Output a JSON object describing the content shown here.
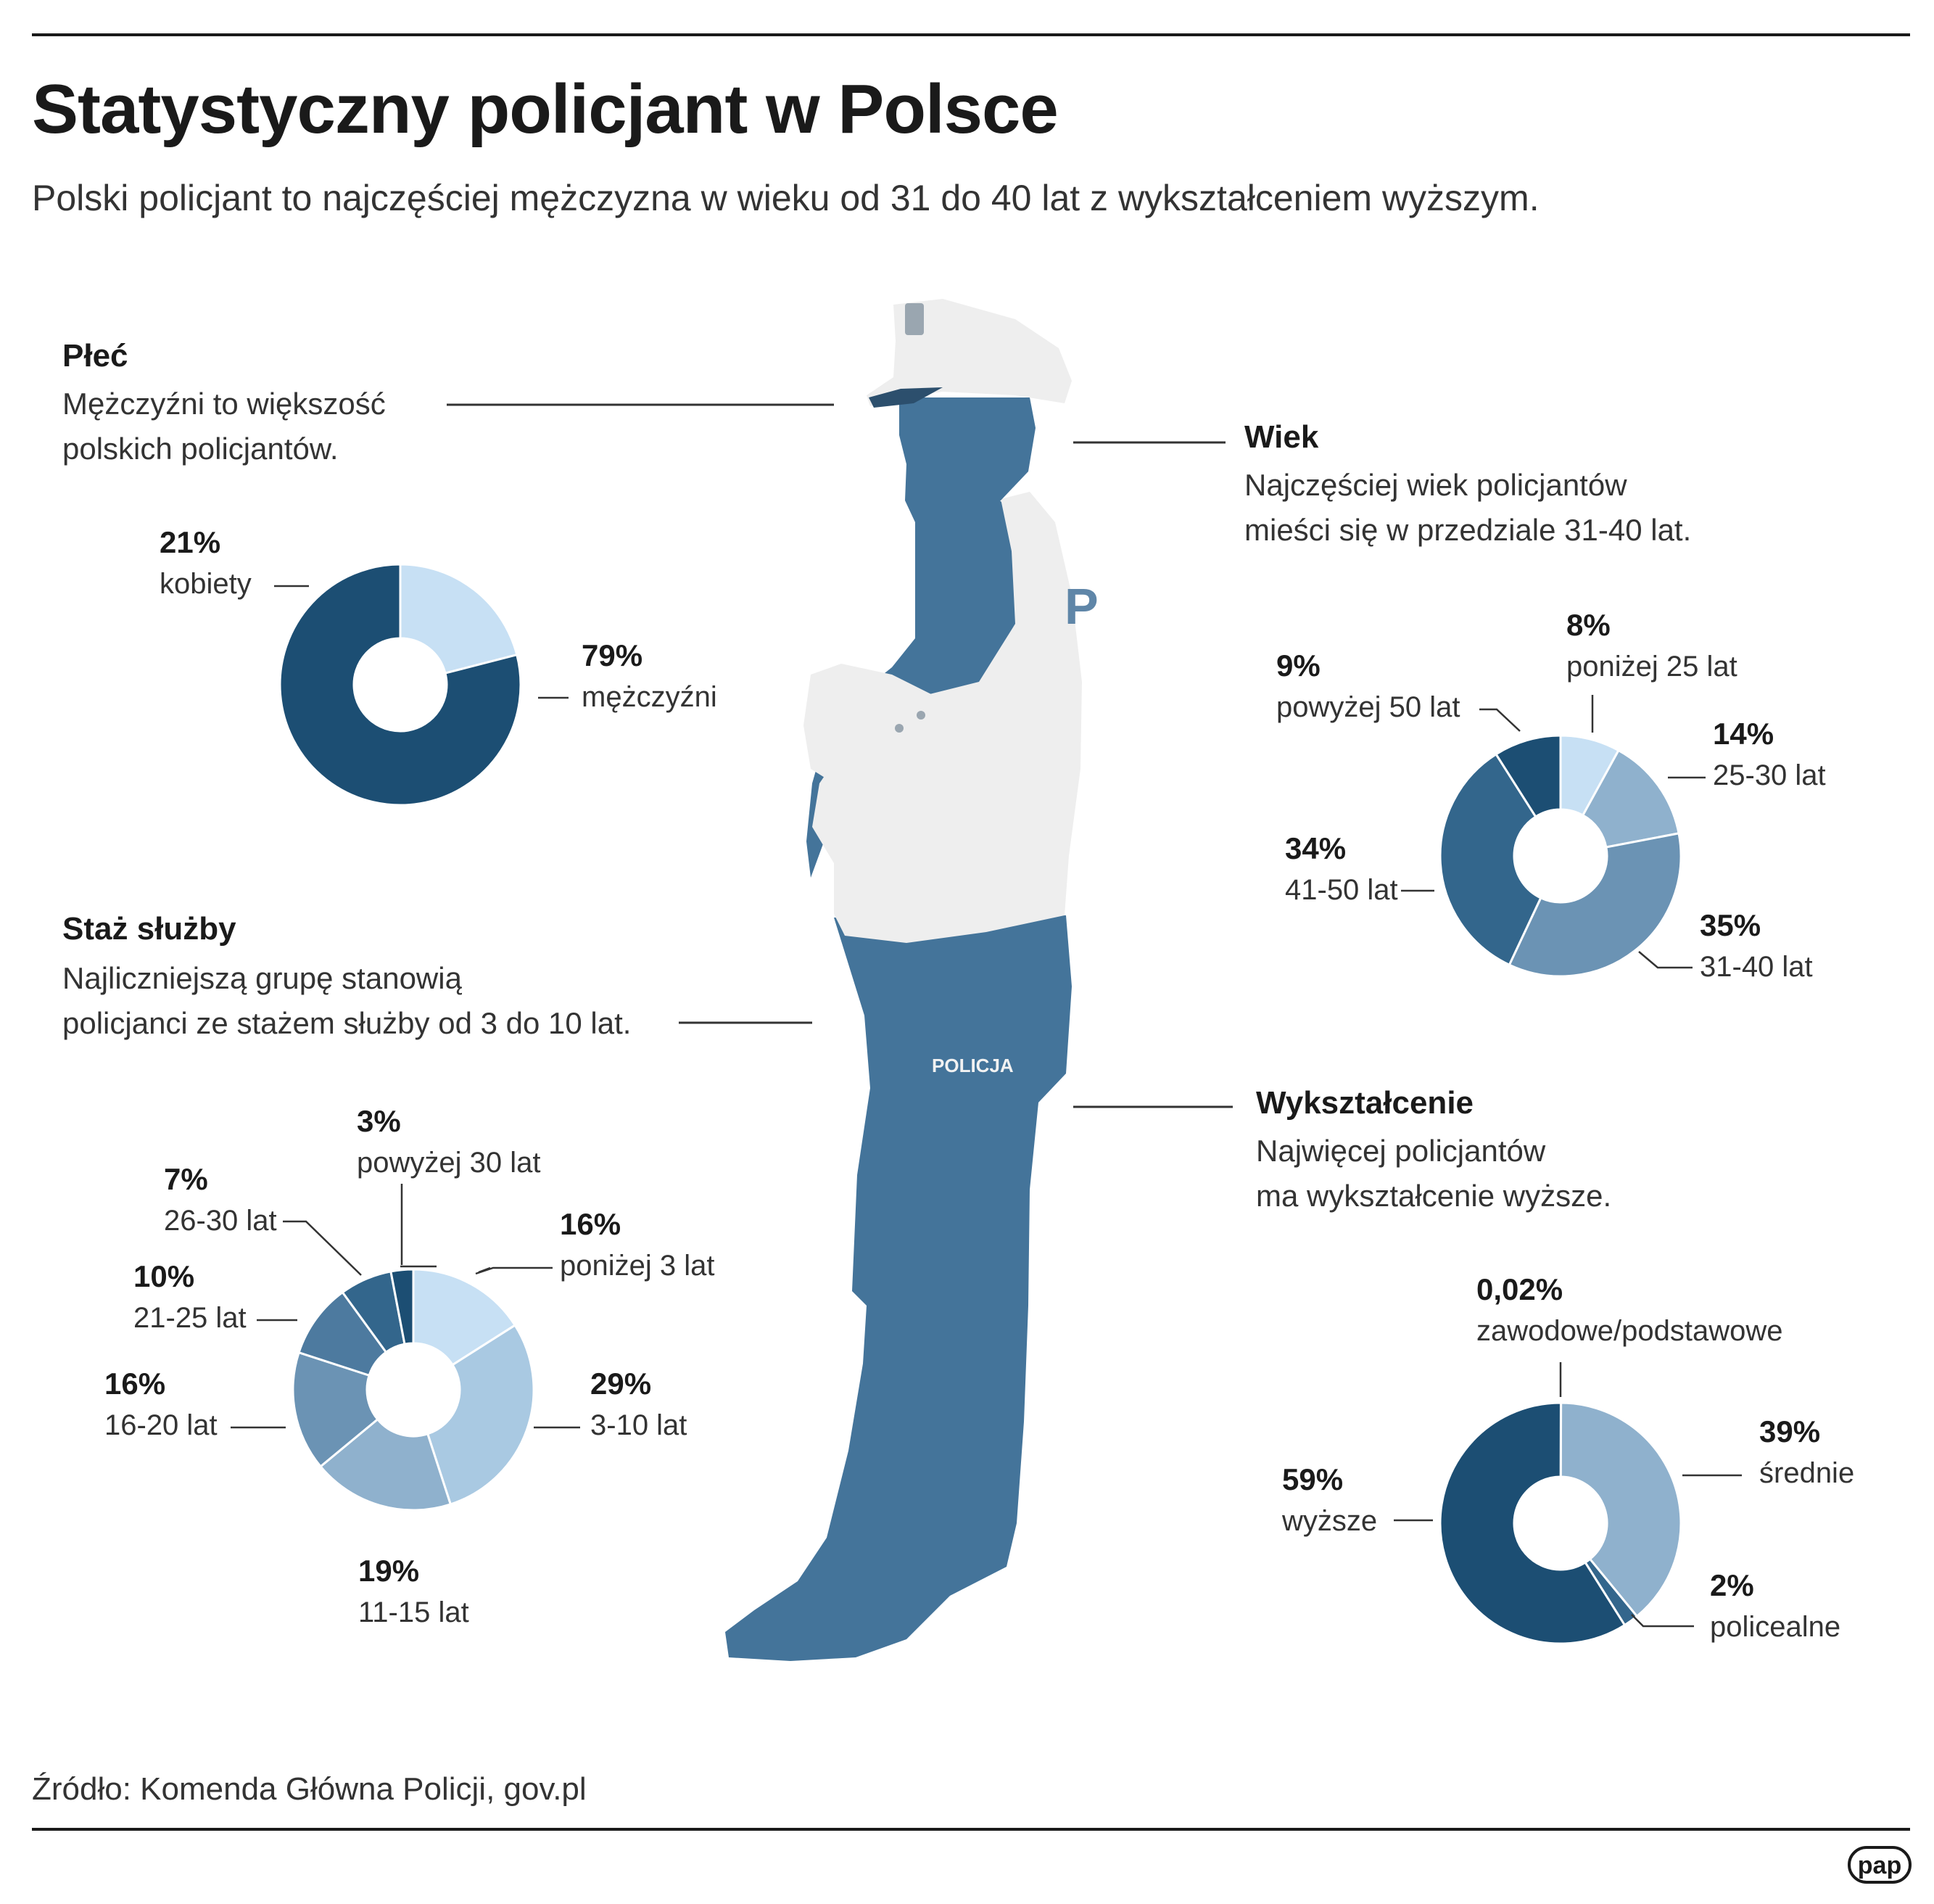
{
  "title": "Statystyczny policjant w Polsce",
  "subtitle": "Polski policjant to najczęściej mężczyzna w wieku od 31 do 40 lat z wykształceniem wyższym.",
  "source": "Źródło: Komenda Główna Policji, gov.pl",
  "logo": "pap",
  "figure": {
    "badge_text": "POLICJA",
    "vest_text": "P"
  },
  "sections": {
    "gender": {
      "heading": "Płeć",
      "description": [
        "Mężczyźni to większość",
        "polskich policjantów."
      ]
    },
    "age": {
      "heading": "Wiek",
      "description": [
        "Najczęściej wiek policjantów",
        "mieści się w przedziale 31-40 lat."
      ]
    },
    "service": {
      "heading": "Staż służby",
      "description": [
        "Najliczniejszą grupę stanowią",
        "policjanci ze stażem służby od 3 do 10 lat."
      ]
    },
    "education": {
      "heading": "Wykształcenie",
      "description": [
        "Najwięcej policjantów",
        "ma wykształcenie wyższe."
      ]
    }
  },
  "colors": {
    "navy": "#1c4e73",
    "mid_dark": "#33668c",
    "mid": "#6b93b4",
    "mid_light": "#8fb1cd",
    "light": "#a9c9e2",
    "pale": "#c7e0f4",
    "figure": "#44749a",
    "figure_white": "#eeeeee"
  },
  "chart_data": [
    {
      "id": "gender",
      "type": "pie",
      "donut": true,
      "slices": [
        {
          "value": 21,
          "pct": "21%",
          "label": "kobiety",
          "color": "#c7e0f4"
        },
        {
          "value": 79,
          "pct": "79%",
          "label": "mężczyźni",
          "color": "#1c4e73"
        }
      ]
    },
    {
      "id": "age",
      "type": "pie",
      "donut": true,
      "slices": [
        {
          "value": 8,
          "pct": "8%",
          "label": "poniżej 25 lat",
          "color": "#c7e0f4"
        },
        {
          "value": 14,
          "pct": "14%",
          "label": "25-30 lat",
          "color": "#8fb1cd"
        },
        {
          "value": 35,
          "pct": "35%",
          "label": "31-40 lat",
          "color": "#6b93b4"
        },
        {
          "value": 34,
          "pct": "34%",
          "label": "41-50 lat",
          "color": "#33668c"
        },
        {
          "value": 9,
          "pct": "9%",
          "label": "powyżej 50 lat",
          "color": "#1c4e73"
        }
      ]
    },
    {
      "id": "service",
      "type": "pie",
      "donut": true,
      "slices": [
        {
          "value": 16,
          "pct": "16%",
          "label": "poniżej 3 lat",
          "color": "#c7e0f4"
        },
        {
          "value": 29,
          "pct": "29%",
          "label": "3-10 lat",
          "color": "#a9c9e2"
        },
        {
          "value": 19,
          "pct": "19%",
          "label": "11-15 lat",
          "color": "#8fb1cd"
        },
        {
          "value": 16,
          "pct": "16%",
          "label": "16-20 lat",
          "color": "#6b93b4"
        },
        {
          "value": 10,
          "pct": "10%",
          "label": "21-25 lat",
          "color": "#4d7a9f"
        },
        {
          "value": 7,
          "pct": "7%",
          "label": "26-30 lat",
          "color": "#33668c"
        },
        {
          "value": 3,
          "pct": "3%",
          "label": "powyżej 30 lat",
          "color": "#1c4e73"
        }
      ]
    },
    {
      "id": "education",
      "type": "pie",
      "donut": true,
      "slices": [
        {
          "value": 0.02,
          "pct": "0,02%",
          "label": "zawodowe/podstawowe",
          "color": "#c7e0f4"
        },
        {
          "value": 39,
          "pct": "39%",
          "label": "średnie",
          "color": "#8fb1cd"
        },
        {
          "value": 2,
          "pct": "2%",
          "label": "policealne",
          "color": "#33668c"
        },
        {
          "value": 59,
          "pct": "59%",
          "label": "wyższe",
          "color": "#1c4e73"
        }
      ]
    }
  ]
}
